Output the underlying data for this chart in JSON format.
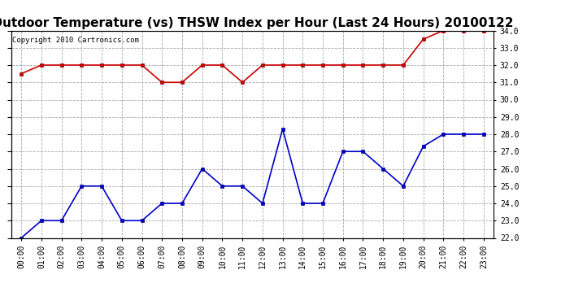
{
  "title": "Outdoor Temperature (vs) THSW Index per Hour (Last 24 Hours) 20100122",
  "copyright": "Copyright 2010 Cartronics.com",
  "x_labels": [
    "00:00",
    "01:00",
    "02:00",
    "03:00",
    "04:00",
    "05:00",
    "06:00",
    "07:00",
    "08:00",
    "09:00",
    "10:00",
    "11:00",
    "12:00",
    "13:00",
    "14:00",
    "15:00",
    "16:00",
    "17:00",
    "18:00",
    "19:00",
    "20:00",
    "21:00",
    "22:00",
    "23:00"
  ],
  "red_data": [
    31.5,
    32.0,
    32.0,
    32.0,
    32.0,
    32.0,
    32.0,
    31.0,
    31.0,
    32.0,
    32.0,
    31.0,
    32.0,
    32.0,
    32.0,
    32.0,
    32.0,
    32.0,
    32.0,
    32.0,
    33.5,
    34.0,
    34.0,
    34.0
  ],
  "blue_data": [
    22.0,
    23.0,
    23.0,
    25.0,
    25.0,
    23.0,
    23.0,
    24.0,
    24.0,
    26.0,
    25.0,
    25.0,
    24.0,
    28.3,
    24.0,
    24.0,
    27.0,
    27.0,
    26.0,
    25.0,
    27.3,
    28.0,
    28.0,
    28.0
  ],
  "red_color": "#cc0000",
  "blue_color": "#0000cc",
  "background_color": "#ffffff",
  "grid_color": "#aaaaaa",
  "ylim": [
    22.0,
    34.0
  ],
  "yticks": [
    22.0,
    23.0,
    24.0,
    25.0,
    26.0,
    27.0,
    28.0,
    29.0,
    30.0,
    31.0,
    32.0,
    33.0,
    34.0
  ],
  "marker": "s",
  "marker_size": 3,
  "line_width": 1.2,
  "title_fontsize": 11,
  "tick_fontsize": 7,
  "copyright_fontsize": 6.5
}
